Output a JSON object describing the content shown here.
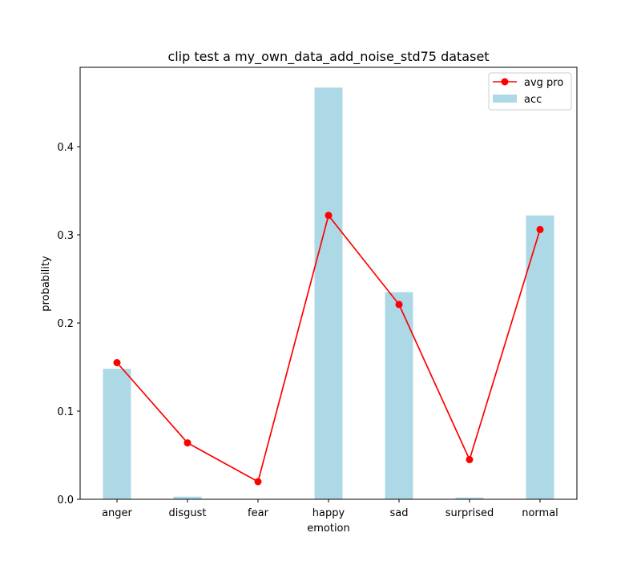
{
  "chart_data": {
    "type": "bar",
    "title": "clip test a my_own_data_add_noise_std75 dataset",
    "xlabel": "emotion",
    "ylabel": "probability",
    "categories": [
      "anger",
      "disgust",
      "fear",
      "happy",
      "sad",
      "surprised",
      "normal"
    ],
    "ylim": [
      0,
      0.49
    ],
    "yticks": [
      "0.0",
      "0.1",
      "0.2",
      "0.3",
      "0.4"
    ],
    "grid": false,
    "legend_position": "top-right",
    "series": [
      {
        "name": "acc",
        "type": "bar",
        "color": "#add8e6",
        "values": [
          0.148,
          0.003,
          0.0,
          0.467,
          0.235,
          0.002,
          0.322
        ]
      },
      {
        "name": "avg pro",
        "type": "line",
        "marker": "circle",
        "color": "#ff0000",
        "values": [
          0.155,
          0.064,
          0.02,
          0.322,
          0.221,
          0.045,
          0.306
        ]
      }
    ]
  }
}
